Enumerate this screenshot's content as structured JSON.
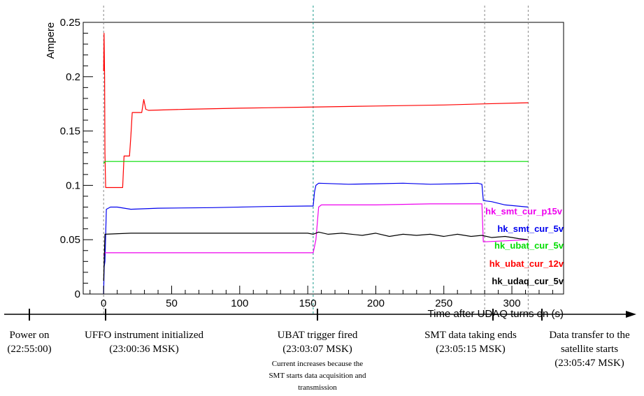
{
  "chart_data": {
    "type": "line",
    "xlabel": "Time after UDAQ turns on (s)",
    "ylabel": "Ampere",
    "xlim": [
      -15,
      338
    ],
    "ylim": [
      0,
      0.25
    ],
    "x_ticks": [
      0,
      50,
      100,
      150,
      200,
      250,
      300
    ],
    "y_ticks": [
      0,
      0.05,
      0.1,
      0.15,
      0.2,
      0.25
    ],
    "y_tick_labels": [
      "0",
      "0.05",
      "0.1",
      "0.15",
      "0.2",
      "0.25"
    ],
    "grid": false,
    "legend_placement": "right",
    "series": [
      {
        "name": "hk_ubat_cur_12v",
        "color": "#ff0000",
        "points": [
          [
            0,
            0.205
          ],
          [
            0.3,
            0.24
          ],
          [
            0.7,
            0.2
          ],
          [
            1,
            0.13
          ],
          [
            1.5,
            0.098
          ],
          [
            14,
            0.098
          ],
          [
            15,
            0.127
          ],
          [
            19,
            0.127
          ],
          [
            20,
            0.145
          ],
          [
            21,
            0.167
          ],
          [
            28,
            0.167
          ],
          [
            29.5,
            0.179
          ],
          [
            31,
            0.17
          ],
          [
            33,
            0.169
          ],
          [
            60,
            0.17
          ],
          [
            100,
            0.171
          ],
          [
            150,
            0.172
          ],
          [
            200,
            0.173
          ],
          [
            250,
            0.174
          ],
          [
            280,
            0.175
          ],
          [
            312,
            0.176
          ]
        ]
      },
      {
        "name": "hk_ubat_cur_5v",
        "color": "#00dd00",
        "points": [
          [
            0,
            0.12
          ],
          [
            1,
            0.122
          ],
          [
            312,
            0.122
          ]
        ]
      },
      {
        "name": "hk_smt_cur_5v",
        "color": "#0000ee",
        "points": [
          [
            0,
            0.0
          ],
          [
            0.4,
            0.025
          ],
          [
            1,
            0.03
          ],
          [
            2,
            0.078
          ],
          [
            5,
            0.08
          ],
          [
            10,
            0.08
          ],
          [
            20,
            0.078
          ],
          [
            40,
            0.079
          ],
          [
            80,
            0.0795
          ],
          [
            120,
            0.0805
          ],
          [
            150,
            0.081
          ],
          [
            154,
            0.081
          ],
          [
            155,
            0.094
          ],
          [
            156,
            0.1
          ],
          [
            158,
            0.102
          ],
          [
            180,
            0.101
          ],
          [
            200,
            0.1015
          ],
          [
            220,
            0.102
          ],
          [
            240,
            0.101
          ],
          [
            260,
            0.1015
          ],
          [
            275,
            0.102
          ],
          [
            278,
            0.101
          ],
          [
            279,
            0.086
          ],
          [
            285,
            0.085
          ],
          [
            295,
            0.082
          ],
          [
            312,
            0.08
          ]
        ]
      },
      {
        "name": "hk_smt_cur_p15v",
        "color": "#ee00ee",
        "points": [
          [
            0,
            0.035
          ],
          [
            1,
            0.038
          ],
          [
            154,
            0.038
          ],
          [
            156,
            0.05
          ],
          [
            158,
            0.08
          ],
          [
            160,
            0.082
          ],
          [
            200,
            0.082
          ],
          [
            240,
            0.083
          ],
          [
            278,
            0.083
          ],
          [
            279,
            0.048
          ],
          [
            295,
            0.049
          ],
          [
            312,
            0.05
          ]
        ]
      },
      {
        "name": "hk_udaq_cur_5v",
        "color": "#000000",
        "points": [
          [
            0,
            0.012
          ],
          [
            1,
            0.055
          ],
          [
            20,
            0.056
          ],
          [
            60,
            0.056
          ],
          [
            100,
            0.056
          ],
          [
            150,
            0.056
          ],
          [
            154,
            0.055
          ],
          [
            158,
            0.057
          ],
          [
            165,
            0.055
          ],
          [
            175,
            0.056
          ],
          [
            190,
            0.054
          ],
          [
            200,
            0.056
          ],
          [
            210,
            0.053
          ],
          [
            220,
            0.055
          ],
          [
            230,
            0.054
          ],
          [
            240,
            0.055
          ],
          [
            250,
            0.053
          ],
          [
            260,
            0.055
          ],
          [
            270,
            0.053
          ],
          [
            278,
            0.054
          ],
          [
            285,
            0.052
          ],
          [
            295,
            0.053
          ],
          [
            305,
            0.051
          ],
          [
            312,
            0.05
          ]
        ]
      }
    ],
    "event_lines": [
      {
        "x": 0,
        "color": "#888888"
      },
      {
        "x": 154,
        "color": "#1a9a8a"
      },
      {
        "x": 280,
        "color": "#888888"
      },
      {
        "x": 312,
        "color": "#888888"
      }
    ]
  },
  "timeline": {
    "events": [
      {
        "id": "power-on",
        "lines": [
          "Power on",
          "(22:55:00)"
        ]
      },
      {
        "id": "ufo-init",
        "lines": [
          "UFFO instrument initialized",
          "(23:00:36 MSK)"
        ]
      },
      {
        "id": "ubat-trigger",
        "lines": [
          "UBAT trigger fired",
          "(23:03:07 MSK)"
        ],
        "note": [
          "Current increases because the",
          "SMT starts data acquisition and",
          "transmission"
        ]
      },
      {
        "id": "smt-end",
        "lines": [
          "SMT data taking ends",
          "(23:05:15 MSK)"
        ]
      },
      {
        "id": "data-transfer",
        "lines": [
          "Data transfer to the",
          "satellite starts",
          "(23:05:47 MSK)"
        ]
      }
    ]
  }
}
